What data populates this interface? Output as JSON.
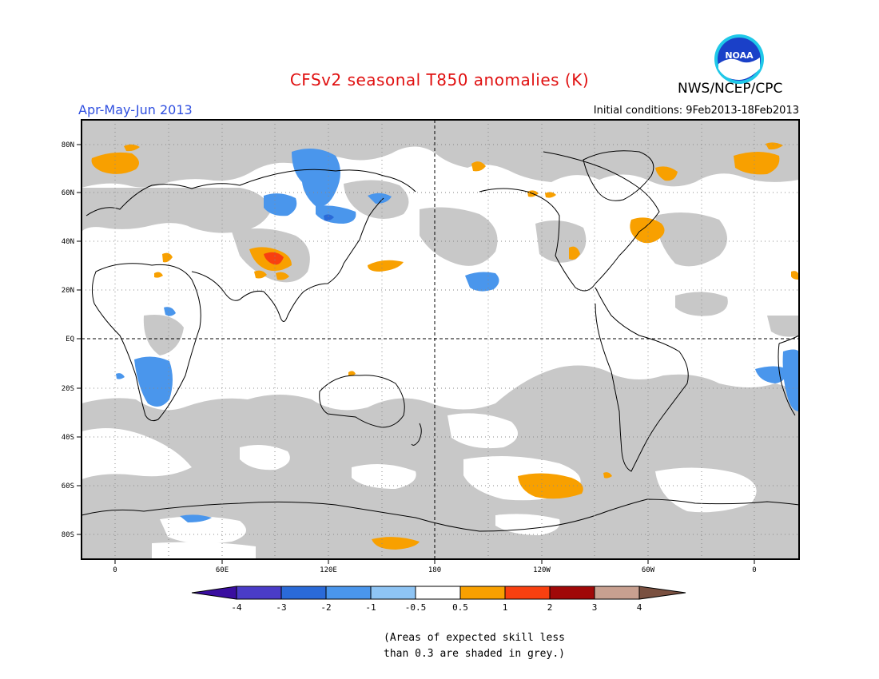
{
  "title": "CFSv2 seasonal T850 anomalies (K)",
  "period": "Apr-May-Jun 2013",
  "agency": "NWS/NCEP/CPC",
  "logo_text": "NOAA",
  "initial_conditions": "Initial conditions: 9Feb2013-18Feb2013",
  "note_line1": "(Areas of expected skill less",
  "note_line2": "than 0.3 are shaded in grey.)",
  "axes": {
    "lat_labels": [
      "80N",
      "60N",
      "40N",
      "20N",
      "EQ",
      "20S",
      "40S",
      "60S",
      "80S"
    ],
    "lon_labels": [
      "0",
      "60E",
      "120E",
      "180",
      "120W",
      "60W",
      "0"
    ]
  },
  "colorbar": {
    "labels": [
      "-4",
      "-3",
      "-2",
      "-1",
      "-0.5",
      "0.5",
      "1",
      "2",
      "3",
      "4"
    ],
    "colors": [
      "#3a0ea0",
      "#4a3cc8",
      "#2a6ad8",
      "#4a96ec",
      "#8ec4f4",
      "#ffffff",
      "#f8a000",
      "#f84010",
      "#a00808",
      "#c8a090",
      "#7a5040"
    ]
  },
  "colors": {
    "grey_skill": "#c8c8c8",
    "title": "#e01010",
    "period": "#3050e0"
  }
}
